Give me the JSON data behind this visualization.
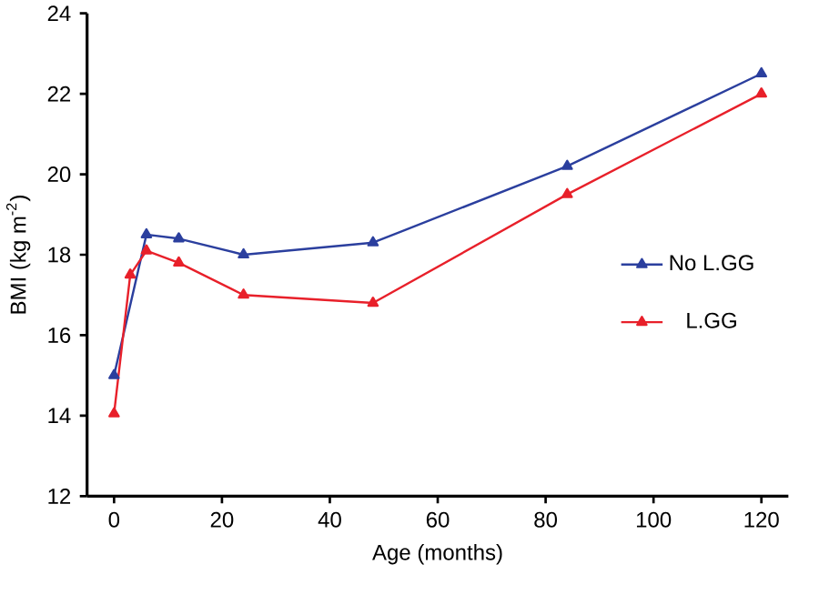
{
  "chart_data": {
    "type": "line",
    "xlabel": "Age (months)",
    "ylabel": "BMI (kg m$^{-2}$)",
    "xlim": [
      -5,
      125
    ],
    "ylim": [
      12,
      24
    ],
    "xticks": [
      0,
      20,
      40,
      60,
      80,
      100,
      120
    ],
    "yticks": [
      12,
      14,
      16,
      18,
      20,
      22,
      24
    ],
    "marker": "triangle",
    "legend": "right",
    "grid": false,
    "series": [
      {
        "name": "No L.GG",
        "color": "#2b3f9e",
        "x": [
          0,
          6,
          12,
          24,
          48,
          84,
          120
        ],
        "values": [
          15,
          18.5,
          18.4,
          18,
          18.3,
          20.2,
          22.5
        ]
      },
      {
        "name": "L.GG",
        "color": "#e8202a",
        "x": [
          0,
          3,
          6,
          12,
          24,
          48,
          84,
          120
        ],
        "values": [
          14.05,
          17.5,
          18.1,
          17.8,
          17,
          16.8,
          19.5,
          22
        ]
      }
    ]
  }
}
